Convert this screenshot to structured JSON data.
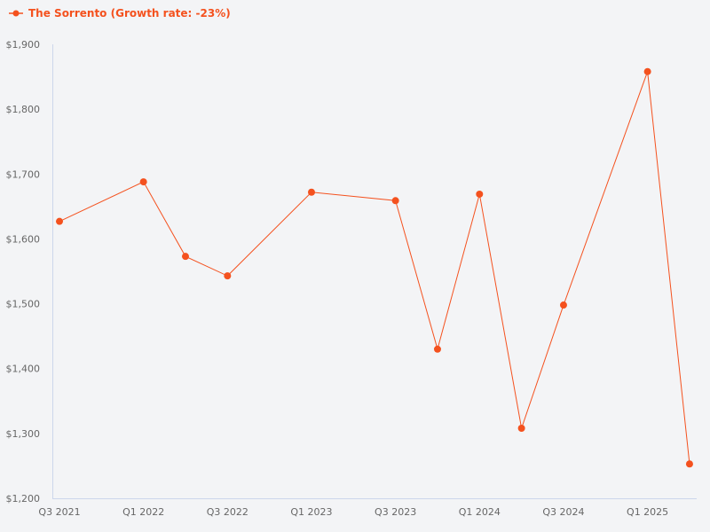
{
  "legend": {
    "label": "The Sorrento (Growth rate: -23%)",
    "marker": "line-dot-icon",
    "color": "#f4511e"
  },
  "chart_data": {
    "type": "line",
    "title": "",
    "xlabel": "",
    "ylabel": "",
    "ylim": [
      1200,
      1900
    ],
    "grid": false,
    "legend_position": "top-left",
    "y_ticks": [
      "$1,200",
      "$1,300",
      "$1,400",
      "$1,500",
      "$1,600",
      "$1,700",
      "$1,800",
      "$1,900"
    ],
    "x_ticks": [
      "Q3 2021",
      "Q1 2022",
      "Q3 2022",
      "Q1 2023",
      "Q3 2023",
      "Q1 2024",
      "Q3 2024",
      "Q1 2025"
    ],
    "series": [
      {
        "name": "The Sorrento (Growth rate: -23%)",
        "color": "#f4511e",
        "points": [
          {
            "x": "Q3 2021",
            "q": 0,
            "y": 1627
          },
          {
            "x": "Q1 2022",
            "q": 2,
            "y": 1688
          },
          {
            "x": "Q2 2022",
            "q": 3,
            "y": 1573
          },
          {
            "x": "Q3 2022",
            "q": 4,
            "y": 1543
          },
          {
            "x": "Q1 2023",
            "q": 6,
            "y": 1672
          },
          {
            "x": "Q3 2023",
            "q": 8,
            "y": 1659
          },
          {
            "x": "Q4 2023",
            "q": 9,
            "y": 1430
          },
          {
            "x": "Q1 2024",
            "q": 10,
            "y": 1669
          },
          {
            "x": "Q2 2024",
            "q": 11,
            "y": 1308
          },
          {
            "x": "Q3 2024",
            "q": 12,
            "y": 1498
          },
          {
            "x": "Q1 2025",
            "q": 14,
            "y": 1858
          },
          {
            "x": "Q2 2025",
            "q": 15,
            "y": 1253
          }
        ]
      }
    ]
  }
}
